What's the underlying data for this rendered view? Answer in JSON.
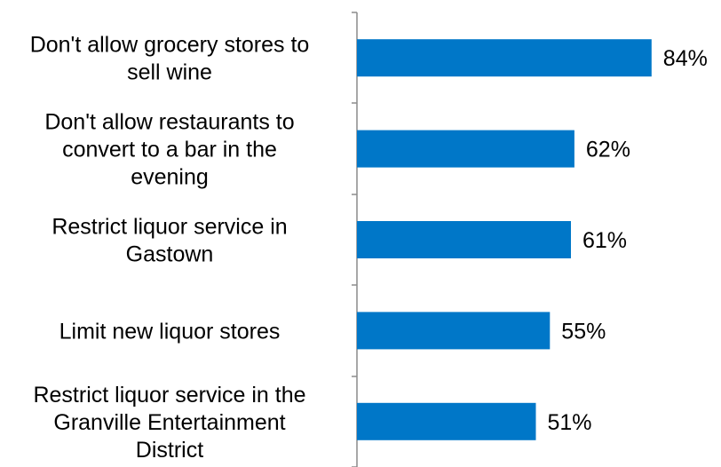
{
  "chart_data": {
    "type": "bar",
    "orientation": "horizontal",
    "categories": [
      [
        "Don't allow grocery stores to",
        "sell wine"
      ],
      [
        "Don't allow restaurants to",
        "convert to a bar in the",
        "evening"
      ],
      [
        "Restrict liquor service in",
        "Gastown"
      ],
      [
        "Limit new liquor stores"
      ],
      [
        "Restrict liquor service in the",
        "Granville Entertainment",
        "District"
      ]
    ],
    "values": [
      84,
      62,
      61,
      55,
      51
    ],
    "value_labels": [
      "84%",
      "62%",
      "61%",
      "55%",
      "51%"
    ],
    "xlim": [
      0,
      100
    ],
    "grid": false,
    "legend": "none",
    "bar_color": "#0077c8",
    "axis_color": "#8c8c8c"
  }
}
